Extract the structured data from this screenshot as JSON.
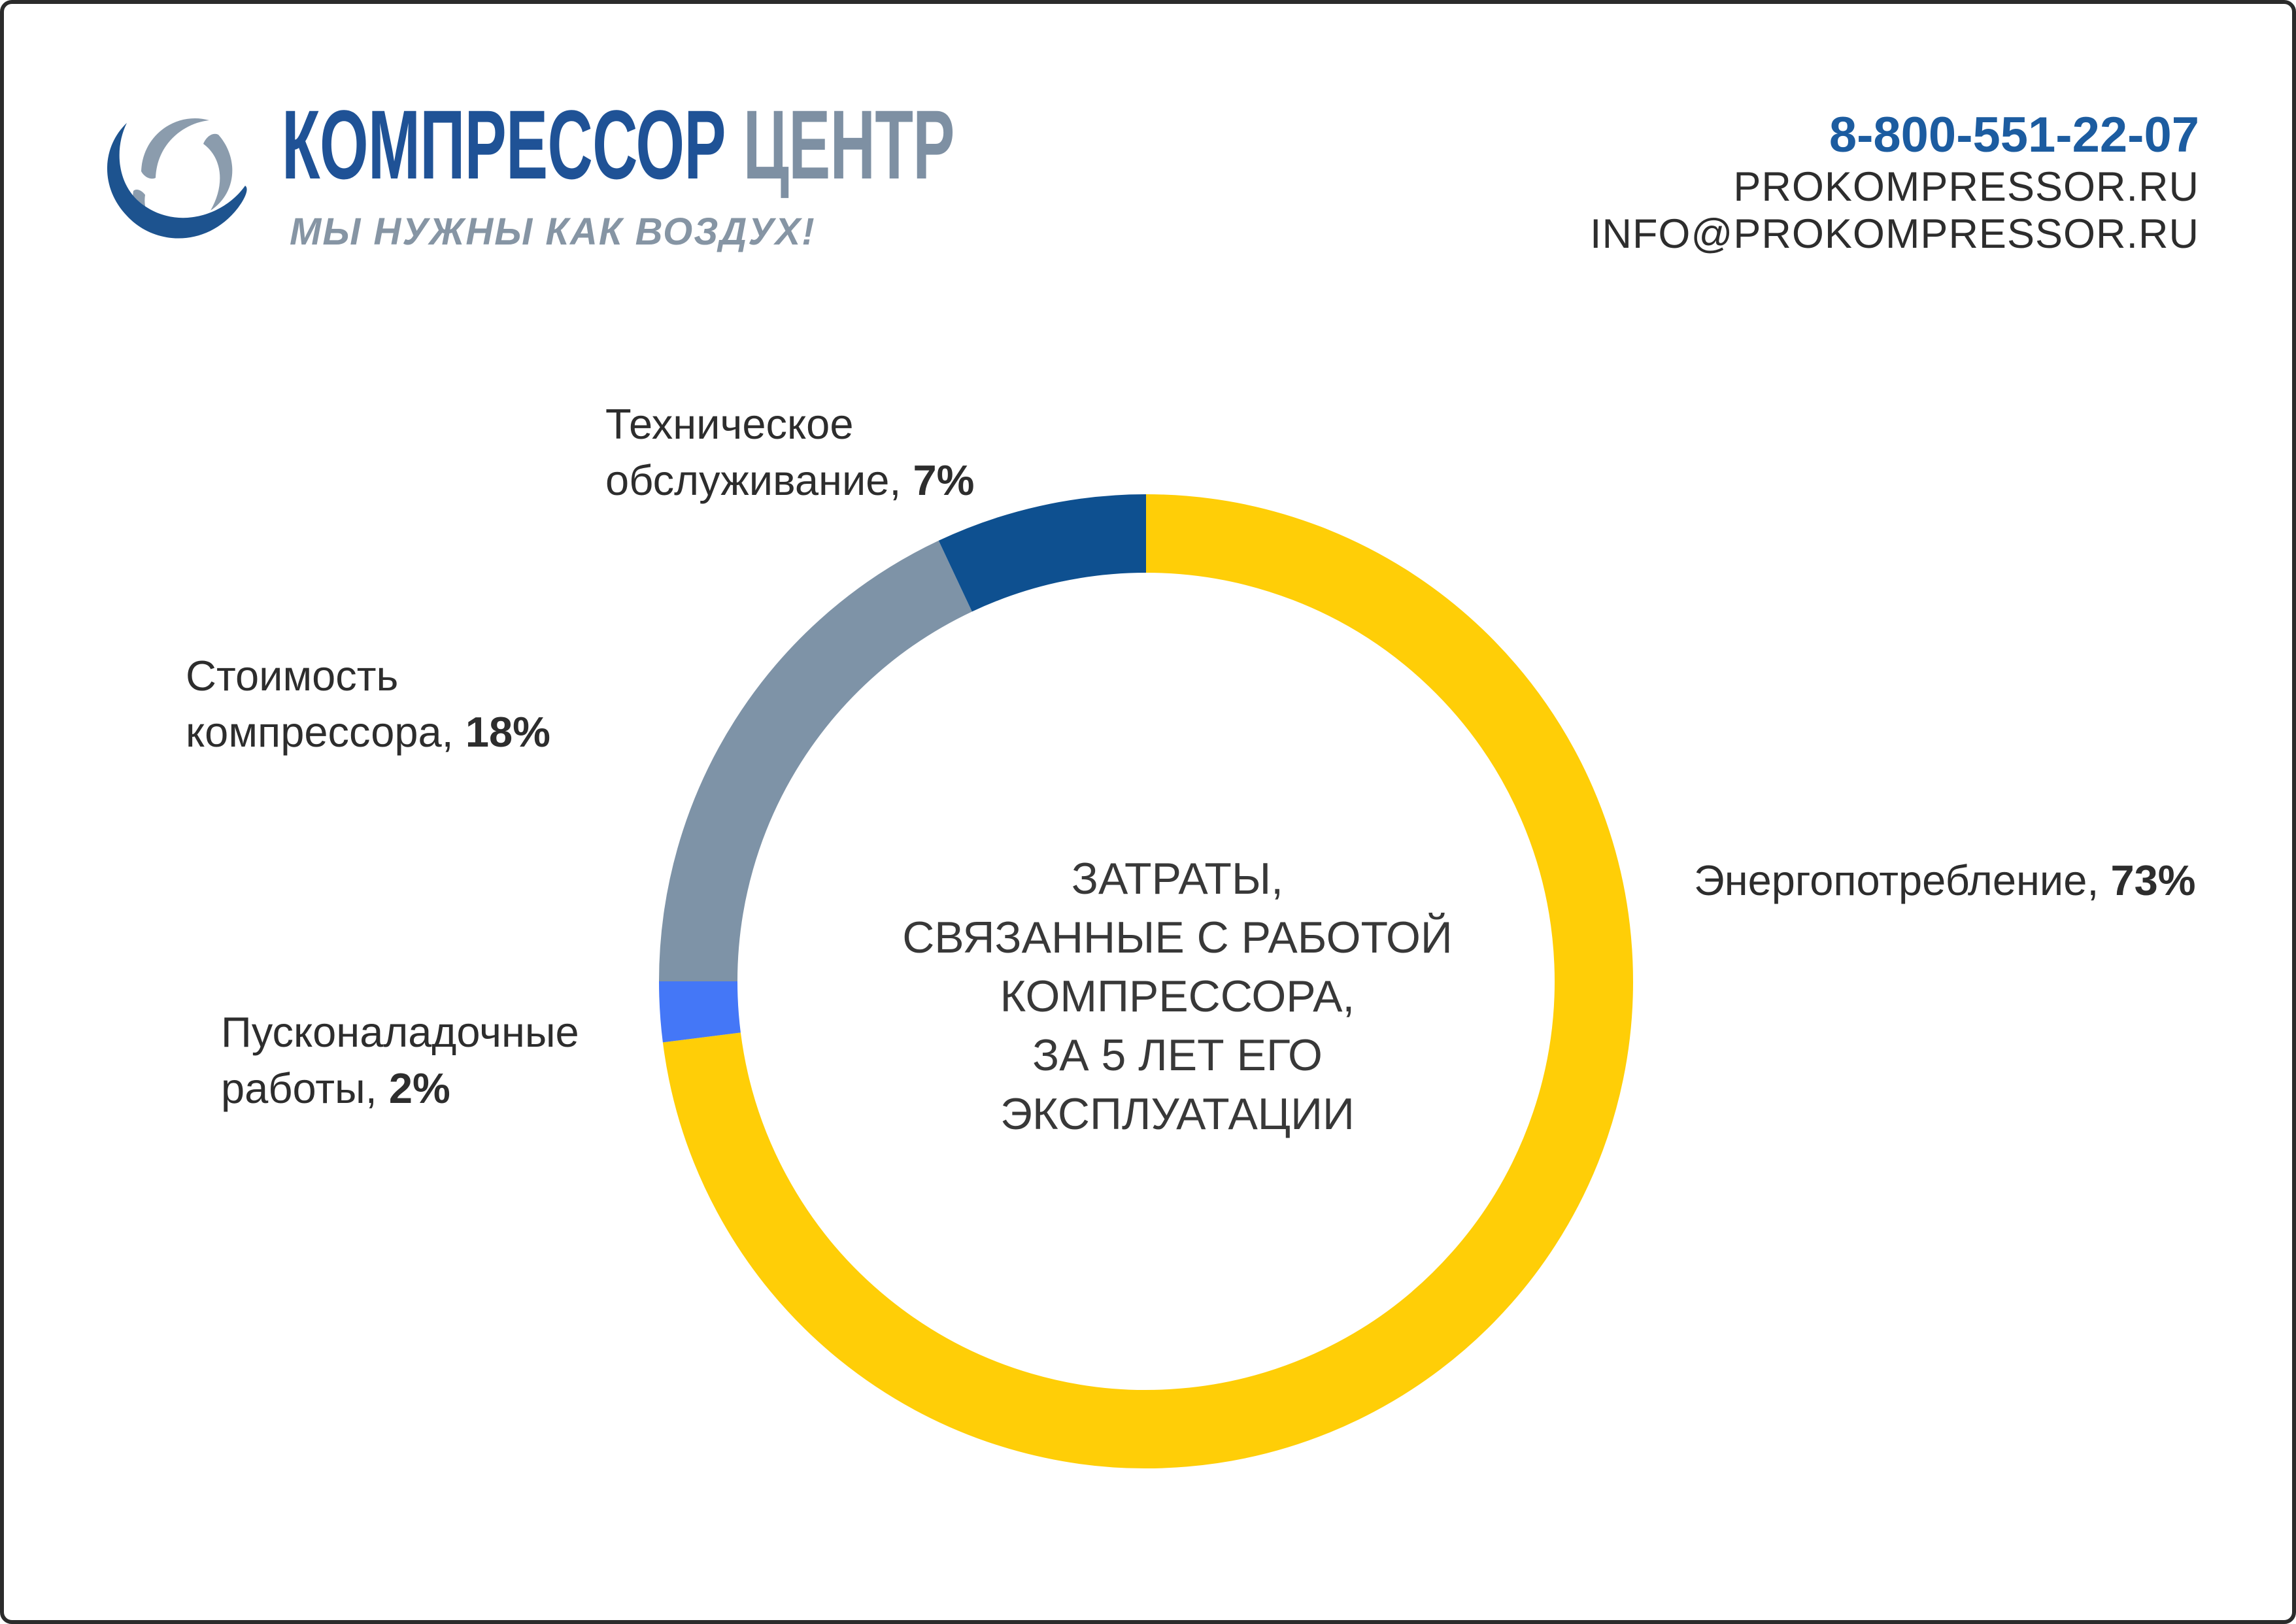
{
  "theme": {
    "border": "#2b2b2b",
    "brand_blue": "#1F5296",
    "brand_gray": "#7E90A3",
    "tagline_gray": "#8695A4",
    "phone_blue": "#1C5CA0",
    "text_dark": "#2D2D2D",
    "center_text": "#383838",
    "icon_blue": "#1D538F",
    "icon_gray": "#8B9CAD"
  },
  "header": {
    "logo": {
      "title_primary": "КОМПРЕССОР",
      "title_secondary": "ЦЕНТР",
      "tagline": "МЫ НУЖНЫ КАК ВОЗДУХ!"
    },
    "contacts": {
      "phone": "8-800-551-22-07",
      "website": "PROKOMPRESSOR.RU",
      "email": "INFO@PROKOMPRESSOR.RU"
    }
  },
  "chart_data": {
    "type": "pie",
    "donut": true,
    "direction": "clockwise",
    "start_angle_deg": 0,
    "inner_radius_ratio": 0.84,
    "legend": false,
    "labels_position": "callout",
    "title": "ЗАТРАТЫ, СВЯЗАННЫЕ С РАБОТОЙ КОМПРЕССОРА, ЗА 5 ЛЕТ ЕГО ЭКСПЛУАТАЦИИ",
    "center_lines": [
      "ЗАТРАТЫ,",
      "СВЯЗАННЫЕ С РАБОТОЙ",
      "КОМПРЕССОРА,",
      "ЗА 5 ЛЕТ ЕГО",
      "ЭКСПЛУАТАЦИИ"
    ],
    "segments": [
      {
        "label": "Энергопотребление",
        "value": 73,
        "color": "#FFCE07"
      },
      {
        "label": "Пусконаладочные работы",
        "value": 2,
        "color": "#4477F7"
      },
      {
        "label": "Стоимость компрессора",
        "value": 18,
        "color": "#7E93A7"
      },
      {
        "label": "Техническое обслуживание",
        "value": 7,
        "color": "#0E5090"
      }
    ],
    "callouts": {
      "tech": {
        "line1": "Техническое",
        "line2": "обслуживание, ",
        "pct": "7%"
      },
      "cost": {
        "line1": "Стоимость",
        "line2": "компрессора, ",
        "pct": "18%"
      },
      "setup": {
        "line1": "Пусконаладочные",
        "line2": "работы, ",
        "pct": "2%"
      },
      "energy": {
        "line1": "Энергопотребление, ",
        "pct": "73%"
      }
    }
  }
}
